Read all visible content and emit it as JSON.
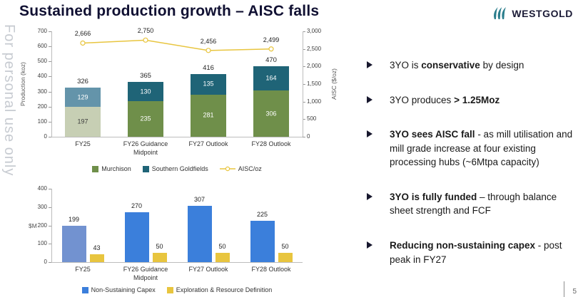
{
  "page": {
    "title": "Sustained production growth – AISC falls",
    "watermark": "For personal use only",
    "logo_text": "WESTGOLD",
    "page_number": "5"
  },
  "colors": {
    "navy": "#101032",
    "murchison": "#6f8f4a",
    "murchison_fy25": "#c7cfb4",
    "goldfields": "#1f6477",
    "goldfields_fy25": "#6494aa",
    "aisc_line": "#e8c53f",
    "capex_blue": "#3b7fdb",
    "capex_blue_fy25": "#7292d0",
    "exploration_yellow": "#e8c53f",
    "logo_teal": "#2a7d8c"
  },
  "chart_data": [
    {
      "type": "bar",
      "subtype": "stacked-bars-with-line",
      "title": "",
      "categories": [
        "FY25",
        "FY26 Guidance Midpoint",
        "FY27 Outlook",
        "FY28 Outlook"
      ],
      "series": [
        {
          "name": "Murchison",
          "values": [
            197,
            235,
            281,
            306
          ],
          "colors": [
            "#c7cfb4",
            "#6f8f4a",
            "#6f8f4a",
            "#6f8f4a"
          ],
          "label_colors": [
            "#3c3c3c",
            "#ffffff",
            "#ffffff",
            "#ffffff"
          ]
        },
        {
          "name": "Southern Goldfields",
          "values": [
            129,
            130,
            135,
            164
          ],
          "colors": [
            "#6494aa",
            "#1f6477",
            "#1f6477",
            "#1f6477"
          ],
          "label_colors": [
            "#ffffff",
            "#ffffff",
            "#ffffff",
            "#ffffff"
          ]
        }
      ],
      "totals": [
        326,
        365,
        416,
        470
      ],
      "line_series": {
        "name": "AISC/oz",
        "values": [
          2666,
          2750,
          2456,
          2499
        ],
        "labels": [
          "2,666",
          "2,750",
          "2,456",
          "2,499"
        ]
      },
      "ylabel_left": "Production (koz)",
      "ylabel_right": "AISC ($/oz)",
      "yticks_left": [
        "0",
        "100",
        "200",
        "300",
        "400",
        "500",
        "600",
        "700"
      ],
      "yticks_right": [
        "0",
        "500",
        "1,000",
        "1,500",
        "2,000",
        "2,500",
        "3,000"
      ],
      "ylim_left": [
        0,
        700
      ],
      "ylim_right": [
        0,
        3000
      ],
      "legend": [
        "Murchison",
        "Southern Goldfields",
        "AISC/oz"
      ],
      "legend_position": "bottom",
      "grid": false
    },
    {
      "type": "bar",
      "subtype": "grouped",
      "title": "",
      "categories": [
        "FY25",
        "FY26 Guidance Midpoint",
        "FY27 Outlook",
        "FY28 Outlook"
      ],
      "series": [
        {
          "name": "Non-Sustaining Capex",
          "values": [
            199,
            270,
            307,
            225
          ],
          "colors": [
            "#7292d0",
            "#3b7fdb",
            "#3b7fdb",
            "#3b7fdb"
          ]
        },
        {
          "name": "Exploration & Resource Definition",
          "values": [
            43,
            50,
            50,
            50
          ],
          "colors": [
            "#e8c53f",
            "#e8c53f",
            "#e8c53f",
            "#e8c53f"
          ]
        }
      ],
      "ylabel": "$M",
      "yticks": [
        "0",
        "100",
        "200",
        "300",
        "400"
      ],
      "ylim": [
        0,
        400
      ],
      "legend": [
        "Non-Sustaining Capex",
        "Exploration & Resource Definition"
      ],
      "legend_position": "bottom",
      "grid": false
    }
  ],
  "bullets": [
    {
      "segments": [
        {
          "text": "3YO is ",
          "bold": false
        },
        {
          "text": "conservative",
          "bold": true
        },
        {
          "text": " by design",
          "bold": false
        }
      ]
    },
    {
      "segments": [
        {
          "text": "3YO produces ",
          "bold": false
        },
        {
          "text": "> 1.25Moz",
          "bold": true
        }
      ]
    },
    {
      "segments": [
        {
          "text": "3YO sees AISC fall",
          "bold": true
        },
        {
          "text": " - as mill utilisation and mill grade increase at four existing processing hubs (~6Mtpa capacity)",
          "bold": false
        }
      ]
    },
    {
      "segments": [
        {
          "text": "3YO is fully funded",
          "bold": true
        },
        {
          "text": " – through balance sheet strength and FCF",
          "bold": false
        }
      ]
    },
    {
      "segments": [
        {
          "text": "Reducing non-sustaining capex",
          "bold": true
        },
        {
          "text": " - post peak in FY27",
          "bold": false
        }
      ]
    }
  ]
}
